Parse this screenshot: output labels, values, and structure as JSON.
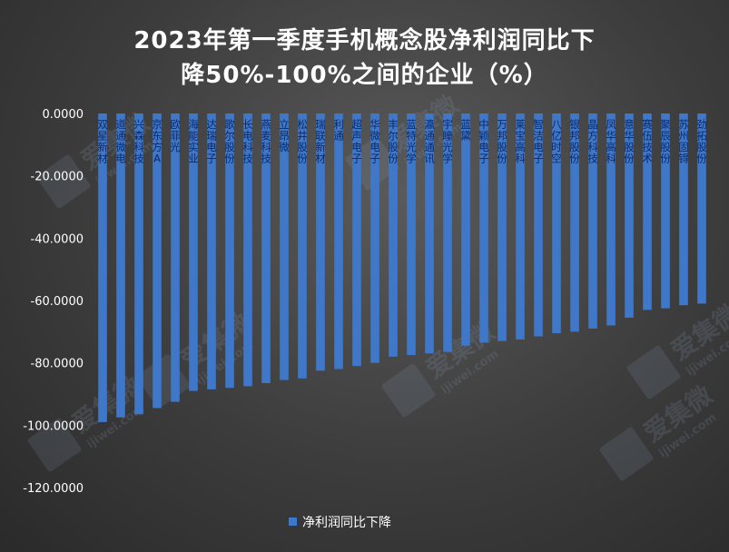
{
  "chart_data": {
    "type": "bar",
    "title_line1": "2023年第一季度手机概念股净利润同比下",
    "title_line2": "降50%-100%之间的企业（%）",
    "legend": "净利润同比下降",
    "legend_position": "bottom",
    "ylim": [
      -120,
      0
    ],
    "yticks": [
      "0.0000",
      "-20.0000",
      "-40.0000",
      "-60.0000",
      "-80.0000",
      "-100.0000",
      "-120.0000"
    ],
    "grid": false,
    "bar_color": "#3f77c9",
    "categories": [
      "双星新材",
      "道通微电",
      "兴森科技",
      "京东方A",
      "欧菲光",
      "海能实业",
      "达瑞电子",
      "歌尔股份",
      "长电科技",
      "燕麦科技",
      "立昂微",
      "松井股份",
      "瑞联新材",
      "利通",
      "超声电子",
      "华微电子",
      "丰尔股份",
      "蓝特光学",
      "瀛通通讯",
      "宇瞳光学",
      "蓝黛",
      "中颖电子",
      "万邦股份",
      "莱宝高科",
      "智洁电子",
      "八亿时空",
      "银邦股份",
      "晶方科技",
      "凤华高科",
      "意华股份",
      "赛伍技术",
      "聚辰股份",
      "苏州固锝",
      "劲拓股份"
    ],
    "values": [
      -99,
      -97.5,
      -96.5,
      -94.5,
      -92.5,
      -89,
      -88.5,
      -88,
      -87.5,
      -86.5,
      -85.5,
      -85,
      -82.5,
      -82,
      -81,
      -80,
      -78,
      -77.5,
      -77,
      -76.5,
      -74.5,
      -73.5,
      -73,
      -72.5,
      -71.5,
      -70.5,
      -70,
      -69,
      -68,
      -65.5,
      -63,
      -62.5,
      -61.5,
      -61
    ]
  },
  "watermark": {
    "text": "爱集微",
    "url": "ijiwei.com",
    "logo": "JW"
  }
}
